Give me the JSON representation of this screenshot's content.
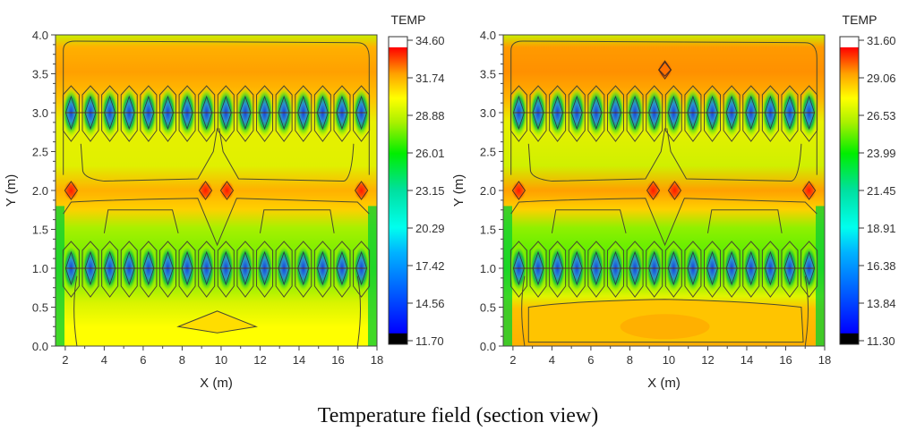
{
  "caption": "Temperature field (section view)",
  "chart_data": [
    {
      "type": "heatmap",
      "title": "",
      "xlabel": "X (m)",
      "ylabel": "Y (m)",
      "xlim": [
        1.5,
        18
      ],
      "ylim": [
        0,
        4
      ],
      "xticks": [
        "2",
        "4",
        "6",
        "8",
        "10",
        "12",
        "14",
        "16",
        "18"
      ],
      "yticks": [
        "0.0",
        "0.5",
        "1.0",
        "1.5",
        "2.0",
        "2.5",
        "3.0",
        "3.5",
        "4.0"
      ],
      "colorbar": {
        "title": "TEMP",
        "min": 11.7,
        "max": 34.6,
        "ticks": [
          "34.60",
          "31.74",
          "28.88",
          "26.01",
          "23.15",
          "20.29",
          "17.42",
          "14.56",
          "11.70"
        ]
      },
      "features": {
        "cold_rows_y": [
          1.0,
          3.0
        ],
        "cold_spots_per_row": 16,
        "hot_spots": [
          [
            2.3,
            2.0
          ],
          [
            9.2,
            2.0
          ],
          [
            10.3,
            2.0
          ],
          [
            17.2,
            2.0
          ]
        ],
        "warm_band_y": 2.0,
        "bottom_region": "warm patch near x≈10, y≈0.25"
      }
    },
    {
      "type": "heatmap",
      "title": "",
      "xlabel": "X (m)",
      "ylabel": "Y (m)",
      "xlim": [
        1.5,
        18
      ],
      "ylim": [
        0,
        4
      ],
      "xticks": [
        "2",
        "4",
        "6",
        "8",
        "10",
        "12",
        "14",
        "16",
        "18"
      ],
      "yticks": [
        "0.0",
        "0.5",
        "1.0",
        "1.5",
        "2.0",
        "2.5",
        "3.0",
        "3.5",
        "4.0"
      ],
      "colorbar": {
        "title": "TEMP",
        "min": 11.3,
        "max": 31.6,
        "ticks": [
          "31.60",
          "29.06",
          "26.53",
          "23.99",
          "21.45",
          "18.91",
          "16.38",
          "13.84",
          "11.30"
        ]
      },
      "features": {
        "cold_rows_y": [
          1.0,
          3.0
        ],
        "cold_spots_per_row": 16,
        "hot_spots": [
          [
            2.3,
            2.0
          ],
          [
            9.2,
            2.0
          ],
          [
            10.3,
            2.0
          ],
          [
            17.2,
            2.0
          ],
          [
            9.8,
            3.55
          ]
        ],
        "warm_band_y": 2.0,
        "bottom_region": "broad warm band y≈0.1–0.55"
      }
    }
  ]
}
